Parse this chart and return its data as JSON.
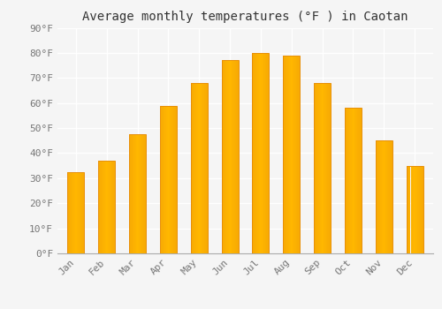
{
  "title": "Average monthly temperatures (°F ) in Caotan",
  "months": [
    "Jan",
    "Feb",
    "Mar",
    "Apr",
    "May",
    "Jun",
    "Jul",
    "Aug",
    "Sep",
    "Oct",
    "Nov",
    "Dec"
  ],
  "values": [
    32.5,
    37,
    47.5,
    59,
    68,
    77,
    80,
    79,
    68,
    58,
    45,
    35
  ],
  "ylim": [
    0,
    90
  ],
  "yticks": [
    0,
    10,
    20,
    30,
    40,
    50,
    60,
    70,
    80,
    90
  ],
  "ytick_labels": [
    "0°F",
    "10°F",
    "20°F",
    "30°F",
    "40°F",
    "50°F",
    "60°F",
    "70°F",
    "80°F",
    "90°F"
  ],
  "background_color": "#f5f5f5",
  "plot_bg_color": "#f5f5f5",
  "grid_color": "#ffffff",
  "bar_color_center": "#FFB700",
  "bar_color_edge": "#E8900A",
  "title_fontsize": 10,
  "tick_fontsize": 8,
  "bar_width": 0.55
}
